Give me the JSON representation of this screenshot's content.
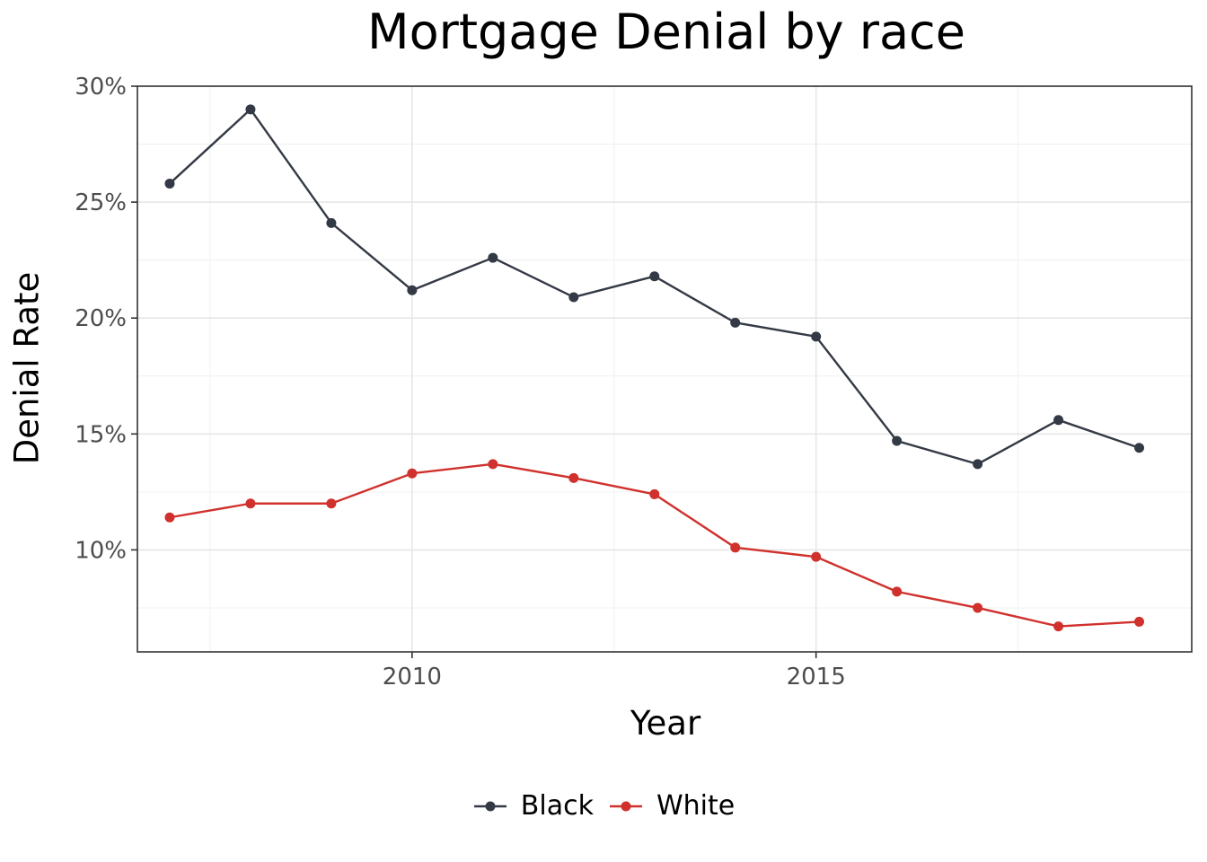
{
  "chart_data": {
    "type": "line",
    "title": "Mortgage Denial by race",
    "xlabel": "Year",
    "ylabel": "Denial Rate",
    "x": [
      2007,
      2008,
      2009,
      2010,
      2011,
      2012,
      2013,
      2014,
      2015,
      2016,
      2017,
      2018,
      2019
    ],
    "series": [
      {
        "name": "Black",
        "color": "#343a45",
        "values": [
          25.8,
          29.0,
          24.1,
          21.2,
          22.6,
          20.9,
          21.8,
          19.8,
          19.2,
          14.7,
          13.7,
          15.6,
          14.4
        ]
      },
      {
        "name": "White",
        "color": "#d0312d",
        "values": [
          11.4,
          12.0,
          12.0,
          13.3,
          13.7,
          13.1,
          12.4,
          10.1,
          9.7,
          8.2,
          7.5,
          6.7,
          6.9
        ]
      }
    ],
    "xlim": [
      2006.6,
      2019.65
    ],
    "ylim": [
      5.6,
      30.0
    ],
    "xticks": [
      2010,
      2015
    ],
    "xtick_labels": [
      "2010",
      "2015"
    ],
    "yticks": [
      10,
      15,
      20,
      25,
      30
    ],
    "ytick_labels": [
      "10%",
      "15%",
      "20%",
      "25%",
      "30%"
    ],
    "grid": true,
    "legend_position": "bottom"
  }
}
